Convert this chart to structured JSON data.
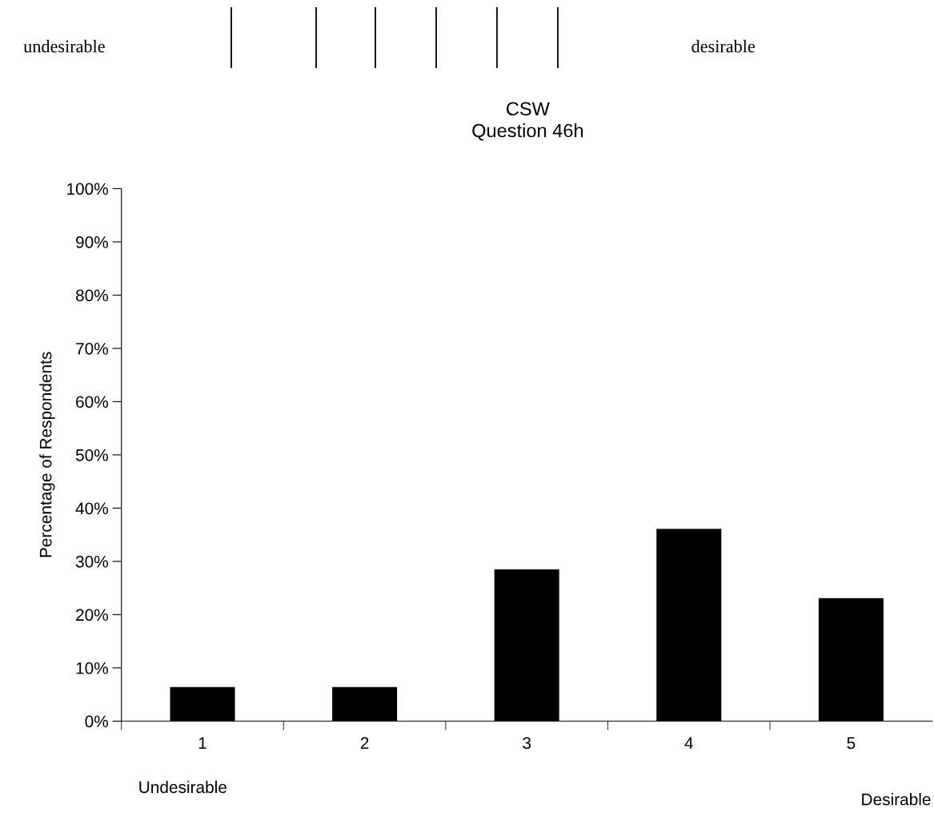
{
  "chart_data": {
    "type": "bar",
    "title": "CSW\nQuestion 46h",
    "ylabel": "Percentage of Respondents",
    "categories": [
      "1",
      "2",
      "3",
      "4",
      "5"
    ],
    "values": [
      6.4,
      6.4,
      28.5,
      36.1,
      23.1
    ],
    "color": "#000000",
    "ylim": [
      0,
      100
    ],
    "yticks": [
      {
        "value": 0,
        "label": "0%"
      },
      {
        "value": 10,
        "label": "10%"
      },
      {
        "value": 20,
        "label": "20%"
      },
      {
        "value": 30,
        "label": "30%"
      },
      {
        "value": 40,
        "label": "40%"
      },
      {
        "value": 50,
        "label": "50%"
      },
      {
        "value": 60,
        "label": "60%"
      },
      {
        "value": 70,
        "label": "70%"
      },
      {
        "value": 80,
        "label": "80%"
      },
      {
        "value": 90,
        "label": "90%"
      },
      {
        "value": 100,
        "label": "100%"
      }
    ],
    "grid": false,
    "legend": false,
    "annotations": [
      "undesirable",
      "desirable",
      "Undesirable",
      "Desirable"
    ]
  }
}
